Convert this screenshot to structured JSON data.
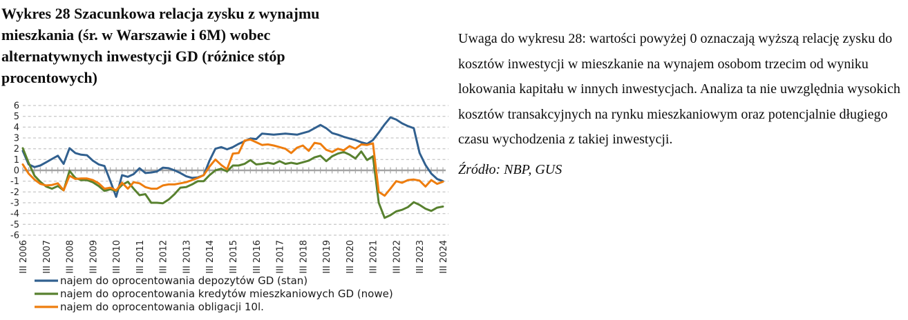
{
  "title_lines": [
    "Wykres 28 Szacunkowa relacja zysku z wynajmu",
    "mieszkania (śr. w Warszawie i 6M) wobec",
    "alternatywnych inwestycji GD (różnice stóp",
    "procentowych)"
  ],
  "note": {
    "text": "Uwaga do wykresu 28: wartości powyżej 0 oznaczają wyższą relację zysku do kosztów inwestycji w mieszkanie na wynajem osobom trzecim od wyniku lokowania kapitału w innych inwestycjach. Analiza ta nie uwzględnia wysokich kosztów transakcyjnych na rynku mieszkaniowym oraz potencjalnie długiego czasu wychodzenia z takiej inwestycji.",
    "source": "Źródło: NBP, GUS"
  },
  "chart_data": {
    "type": "line",
    "title": "",
    "xlabel": "",
    "ylabel": "",
    "ylim": [
      -6,
      6
    ],
    "y_ticks": [
      6,
      5,
      4,
      3,
      2,
      1,
      0,
      -1,
      -2,
      -3,
      -4,
      -5,
      -6
    ],
    "grid": "horizontal-dashed",
    "zero_axis": true,
    "x_unit": "quarter",
    "x_start": "III 2006",
    "x_end": "III 2024",
    "x_tick_every": 4,
    "x_tick_labels": [
      "III 2006",
      "III 2007",
      "III 2008",
      "III 2009",
      "III 2010",
      "III 2011",
      "III 2012",
      "III 2013",
      "III 2014",
      "III 2015",
      "III 2016",
      "III 2017",
      "III 2018",
      "III 2019",
      "III 2020",
      "III 2021",
      "III 2022",
      "III 2023",
      "III 2024"
    ],
    "legend_position": "bottom-left",
    "axis_color": "#a3a3a3",
    "grid_color": "#b8b8b8",
    "series": [
      {
        "name": "najem do oprocentowania depozytów GD (stan)",
        "color": "#31608F",
        "values": [
          1.8,
          0.55,
          0.3,
          0.45,
          0.75,
          1.05,
          1.35,
          0.6,
          2.05,
          1.6,
          1.45,
          1.4,
          0.9,
          0.55,
          0.4,
          -1.0,
          -2.45,
          -0.45,
          -0.6,
          -0.35,
          0.2,
          -0.25,
          -0.2,
          -0.1,
          0.25,
          0.2,
          0.0,
          -0.25,
          -0.55,
          -0.7,
          -0.65,
          -0.45,
          0.9,
          2.0,
          2.15,
          1.95,
          2.15,
          2.45,
          2.7,
          2.95,
          2.9,
          3.4,
          3.35,
          3.3,
          3.35,
          3.4,
          3.35,
          3.3,
          3.45,
          3.6,
          3.9,
          4.2,
          3.9,
          3.45,
          3.3,
          3.1,
          2.95,
          2.8,
          2.6,
          2.45,
          2.8,
          3.5,
          4.25,
          4.9,
          4.7,
          4.35,
          4.1,
          3.9,
          1.6,
          0.5,
          -0.3,
          -0.8,
          -1.0
        ]
      },
      {
        "name": "najem do oprocentowania kredytów  mieszkaniowych GD (nowe)",
        "color": "#58812F",
        "values": [
          2.05,
          0.7,
          -0.5,
          -1.05,
          -1.5,
          -1.7,
          -1.45,
          -1.85,
          -0.05,
          -0.7,
          -0.9,
          -0.9,
          -1.1,
          -1.45,
          -1.9,
          -1.75,
          -1.9,
          -1.35,
          -1.05,
          -1.7,
          -2.3,
          -2.2,
          -3.0,
          -3.0,
          -3.05,
          -2.7,
          -2.2,
          -1.6,
          -1.55,
          -1.3,
          -1.0,
          -1.0,
          -0.45,
          0.0,
          0.15,
          -0.1,
          0.45,
          0.45,
          0.6,
          0.95,
          0.55,
          0.6,
          0.7,
          0.6,
          0.85,
          0.6,
          0.7,
          0.6,
          0.75,
          0.9,
          1.2,
          1.35,
          0.85,
          1.3,
          1.55,
          1.7,
          1.45,
          1.1,
          1.75,
          0.95,
          1.3,
          -3.0,
          -4.4,
          -4.15,
          -3.8,
          -3.65,
          -3.4,
          -2.95,
          -3.2,
          -3.55,
          -3.75,
          -3.45,
          -3.35
        ]
      },
      {
        "name": "najem do oprocentowania obligacji 10l.",
        "color": "#EE7D0E",
        "values": [
          0.55,
          -0.3,
          -0.85,
          -1.25,
          -1.4,
          -1.35,
          -1.2,
          -1.85,
          -0.5,
          -0.8,
          -0.75,
          -0.75,
          -0.9,
          -1.2,
          -1.7,
          -1.6,
          -1.85,
          -1.15,
          -1.7,
          -1.1,
          -1.2,
          -1.55,
          -1.7,
          -1.7,
          -1.4,
          -1.3,
          -1.3,
          -1.2,
          -1.1,
          -0.9,
          -0.7,
          -0.45,
          0.35,
          1.0,
          0.5,
          0.1,
          1.55,
          1.6,
          2.75,
          2.85,
          2.6,
          2.35,
          2.4,
          2.3,
          2.15,
          2.0,
          1.6,
          2.1,
          2.3,
          1.8,
          2.55,
          2.45,
          1.9,
          1.7,
          2.0,
          1.85,
          2.25,
          2.0,
          2.4,
          2.35,
          2.5,
          -2.0,
          -2.35,
          -1.7,
          -1.0,
          -1.15,
          -0.9,
          -0.85,
          -0.95,
          -1.5,
          -0.9,
          -1.25,
          -1.05
        ]
      }
    ]
  }
}
